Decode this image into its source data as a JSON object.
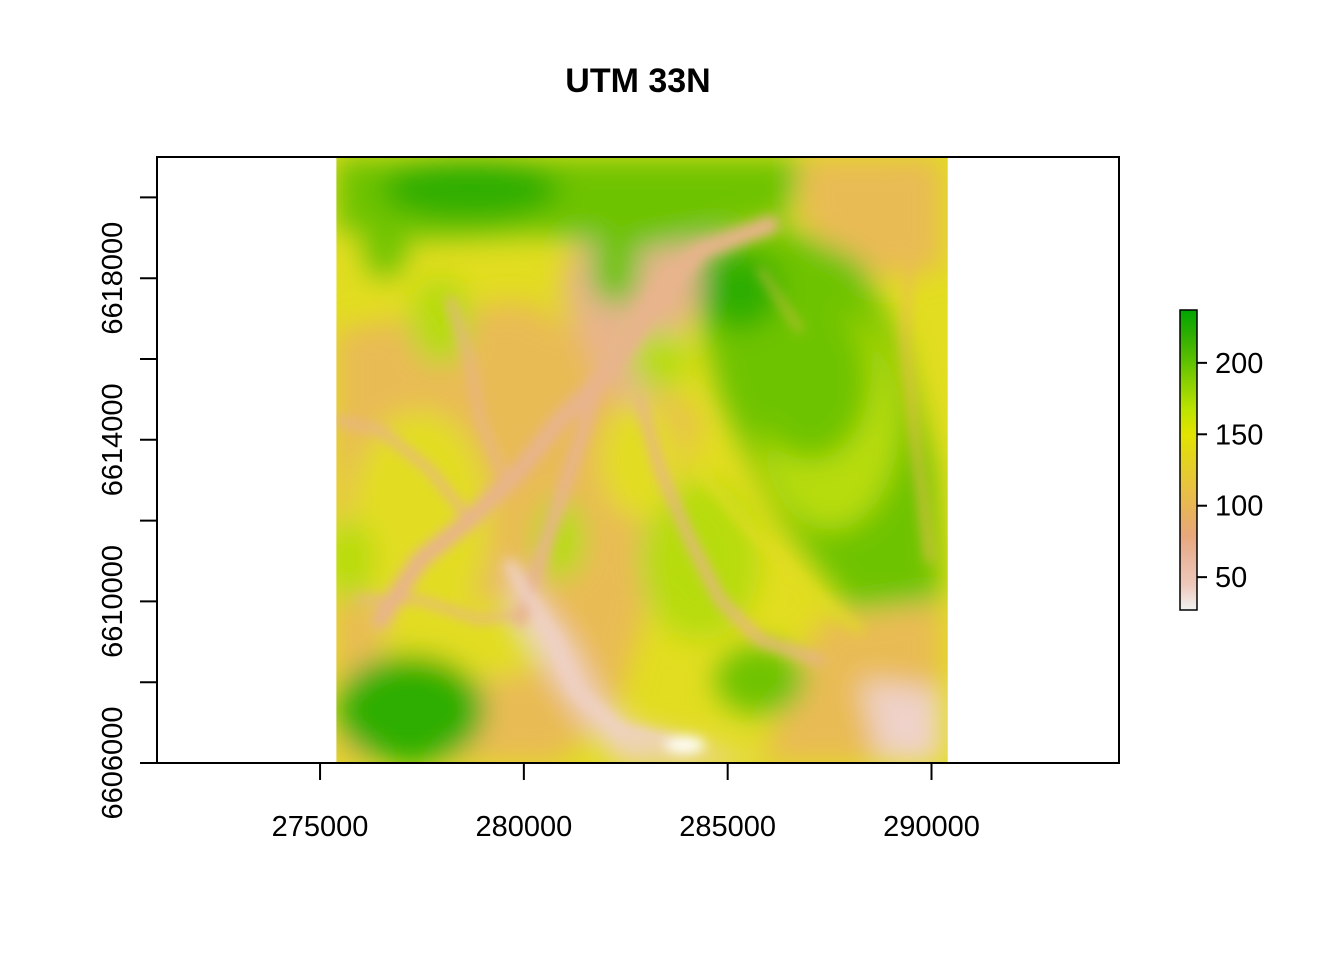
{
  "title": "UTM 33N",
  "map": {
    "type": "raster",
    "crs_label": "UTM 33N",
    "x_range": [
      271000,
      294600
    ],
    "y_range": [
      6606000,
      6621000
    ],
    "raster_extent": {
      "xmin": 275400,
      "xmax": 290400,
      "ymin": 6606000,
      "ymax": 6621000
    },
    "x_ticks": [
      {
        "value": 275000,
        "label": "275000"
      },
      {
        "value": 280000,
        "label": "280000"
      },
      {
        "value": 285000,
        "label": "285000"
      },
      {
        "value": 290000,
        "label": "290000"
      }
    ],
    "y_ticks": [
      {
        "value": 6606000,
        "label": "6606000"
      },
      {
        "value": 6608000,
        "label": ""
      },
      {
        "value": 6610000,
        "label": "6610000"
      },
      {
        "value": 6612000,
        "label": ""
      },
      {
        "value": 6614000,
        "label": "6614000"
      },
      {
        "value": 6616000,
        "label": ""
      },
      {
        "value": 6618000,
        "label": "6618000"
      },
      {
        "value": 6620000,
        "label": ""
      }
    ]
  },
  "legend": {
    "min": 27,
    "max": 237,
    "ticks": [
      {
        "value": 50,
        "label": "50"
      },
      {
        "value": 100,
        "label": "100"
      },
      {
        "value": 150,
        "label": "150"
      },
      {
        "value": 200,
        "label": "200"
      }
    ],
    "colors": [
      "#f2f2f2",
      "#eec9bb",
      "#eab7a0",
      "#e8a77a",
      "#e8b45a",
      "#e8c33e",
      "#e3d320",
      "#e2e400",
      "#bde300",
      "#8fd200",
      "#5bc000",
      "#2fae00",
      "#00a600"
    ]
  },
  "terrain": {
    "colors": {
      "lowest": "#efd2c9",
      "low": "#e8b48c",
      "mid_low": "#e9bb55",
      "mid": "#e2dd20",
      "mid_high": "#b7dc10",
      "high": "#6ec300",
      "highest": "#2fae00"
    }
  }
}
